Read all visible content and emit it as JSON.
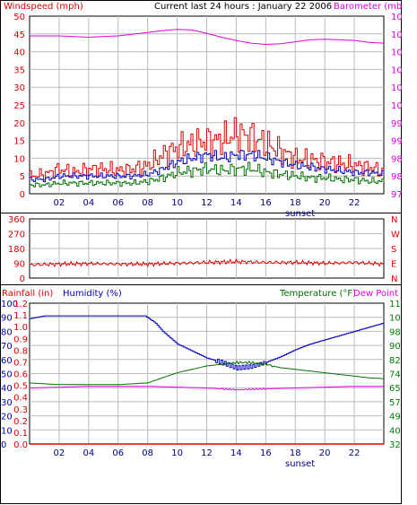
{
  "colors": {
    "red": "#e00000",
    "magenta": "#e000e0",
    "blue": "#0000c0",
    "green": "#007000",
    "navy": "#000080",
    "darkgreen": "#008000",
    "grid": "#bbbbbb",
    "frame": "#000000"
  },
  "chart_data": [
    {
      "type": "line",
      "title": "Current last 24 hours : January 22 2006",
      "ylabel_left": "Windspeed (mph)",
      "ylabel_right": "Barometer (mb)",
      "y_ticks_left": [
        "0",
        "5",
        "10",
        "15",
        "20",
        "25",
        "30",
        "35",
        "40",
        "45",
        "50"
      ],
      "y_ticks_right": [
        "975",
        "980",
        "986",
        "991",
        "997",
        "1002",
        "1008",
        "1013",
        "1018",
        "1024",
        "1029"
      ],
      "ylim_left": [
        0,
        50
      ],
      "ylim_right": [
        975,
        1029
      ],
      "x_ticks": [
        "02",
        "04",
        "06",
        "08",
        "10",
        "12",
        "14",
        "16",
        "18",
        "20",
        "22"
      ],
      "x_annotation": "sunset",
      "xlim": [
        0,
        24
      ],
      "grid": true,
      "series": [
        {
          "axis": "right",
          "color_key": "magenta",
          "x": [
            0,
            2,
            4,
            6,
            8,
            9,
            10,
            11,
            12,
            13,
            14,
            15,
            16,
            17,
            18,
            19,
            20,
            21,
            22,
            23,
            24
          ],
          "values": [
            1023,
            1023,
            1022.6,
            1023,
            1024,
            1024.6,
            1025,
            1024.8,
            1023.8,
            1022.6,
            1021.6,
            1020.8,
            1020.4,
            1020.6,
            1021.2,
            1021.8,
            1022,
            1021.8,
            1021.6,
            1021,
            1020.8
          ]
        },
        {
          "axis": "left",
          "color_key": "red",
          "x": [
            0,
            1,
            2,
            3,
            4,
            5,
            6,
            7,
            8,
            9,
            10,
            11,
            12,
            13,
            14,
            15,
            16,
            17,
            18,
            19,
            20,
            21,
            22,
            23,
            24
          ],
          "values": [
            5,
            5.5,
            7,
            6,
            7,
            7,
            6.5,
            7,
            8,
            11,
            13,
            14,
            15,
            15,
            17,
            16,
            14,
            12,
            10,
            9.5,
            9,
            8.5,
            8,
            7.5,
            6
          ]
        },
        {
          "axis": "left",
          "color_key": "blue",
          "x": [
            0,
            1,
            2,
            3,
            4,
            5,
            6,
            7,
            8,
            9,
            10,
            11,
            12,
            13,
            14,
            15,
            16,
            17,
            18,
            19,
            20,
            21,
            22,
            23,
            24
          ],
          "values": [
            4,
            4,
            5,
            5,
            5,
            5,
            5,
            5,
            5.5,
            7,
            9,
            10,
            11,
            10,
            11,
            11,
            10,
            9,
            8,
            7.5,
            7,
            6.5,
            6,
            6,
            5.5
          ]
        },
        {
          "axis": "left",
          "color_key": "green",
          "x": [
            0,
            1,
            2,
            3,
            4,
            5,
            6,
            7,
            8,
            9,
            10,
            11,
            12,
            13,
            14,
            15,
            16,
            17,
            18,
            19,
            20,
            21,
            22,
            23,
            24
          ],
          "values": [
            2.5,
            2.5,
            3,
            3,
            3,
            3,
            3,
            3,
            3.5,
            4.5,
            6,
            6.5,
            7,
            6.5,
            7,
            7,
            6,
            5.5,
            5,
            4.5,
            4.5,
            4,
            4,
            3.5,
            3.5
          ]
        }
      ]
    },
    {
      "type": "line",
      "ylabel_left": "",
      "y_ticks_left": [
        "360",
        "270",
        "180",
        "90",
        "0"
      ],
      "y_ticks_right": [
        "N",
        "W",
        "S",
        "E",
        "N"
      ],
      "ylim_left": [
        0,
        360
      ],
      "xlim": [
        0,
        24
      ],
      "grid": true,
      "series": [
        {
          "axis": "left",
          "color_key": "red",
          "x": [
            0,
            2,
            4,
            6,
            8,
            10,
            12,
            14,
            16,
            18,
            20,
            22,
            24
          ],
          "values": [
            80,
            85,
            88,
            85,
            85,
            90,
            95,
            100,
            95,
            95,
            90,
            95,
            85
          ]
        }
      ]
    },
    {
      "type": "line",
      "ylabel_left": "Rainfall (in)",
      "ylabel_left2": "Humidity (%)",
      "ylabel_right": "Temperature (°F)",
      "ylabel_right2": "Dew Point",
      "y_ticks_humidity": [
        "100",
        "90",
        "80",
        "70",
        "60",
        "50",
        "40",
        "30",
        "20",
        "10",
        "0"
      ],
      "y_ticks_rain": [
        "1.2",
        "1.1",
        "1.0",
        "0.9",
        "0.8",
        "0.7",
        "0.6",
        "0.5",
        "0.4",
        "0.3",
        "0.2",
        "0.1",
        "0.0"
      ],
      "y_ticks_temp": [
        "115",
        "107",
        "98",
        "90",
        "82",
        "74",
        "65",
        "57",
        "49",
        "40",
        "32"
      ],
      "ylim_humidity": [
        0,
        100
      ],
      "ylim_rain": [
        0,
        1.2
      ],
      "ylim_temp": [
        32,
        115
      ],
      "x_ticks": [
        "02",
        "04",
        "06",
        "08",
        "10",
        "12",
        "14",
        "16",
        "18",
        "20",
        "22"
      ],
      "x_annotation": "sunset",
      "xlim": [
        0,
        24
      ],
      "grid": true,
      "series": [
        {
          "axis": "humidity",
          "color_key": "blue",
          "x": [
            0,
            1,
            2,
            4,
            6,
            7.8,
            8.5,
            9,
            10,
            11,
            12,
            13,
            14,
            15,
            16,
            17,
            18,
            19,
            20,
            21,
            22,
            23,
            24
          ],
          "values": [
            89,
            91,
            91,
            91,
            91,
            91,
            86,
            80,
            71,
            66,
            61,
            58,
            54,
            55,
            58,
            62,
            67,
            71,
            74,
            77,
            80,
            83,
            86
          ]
        },
        {
          "axis": "temp",
          "color_key": "green",
          "x": [
            0,
            2,
            4,
            6,
            8,
            9,
            10,
            11,
            12,
            13,
            14,
            15,
            16,
            17,
            18,
            19,
            20,
            21,
            22,
            23,
            24
          ],
          "values": [
            68,
            67,
            67,
            67,
            68,
            71,
            74,
            76,
            78,
            79,
            80,
            80,
            79,
            77,
            76,
            75,
            74,
            73,
            72,
            71,
            70.5
          ]
        },
        {
          "axis": "temp",
          "color_key": "magenta",
          "x": [
            0,
            2,
            4,
            6,
            8,
            10,
            12,
            14,
            16,
            18,
            20,
            22,
            24
          ],
          "values": [
            65,
            65.5,
            66,
            66,
            66,
            65.5,
            65,
            64,
            64.5,
            65,
            65.5,
            66,
            66
          ]
        },
        {
          "axis": "rain",
          "color_key": "red",
          "x": [
            0,
            24
          ],
          "values": [
            0,
            0
          ]
        }
      ]
    }
  ]
}
